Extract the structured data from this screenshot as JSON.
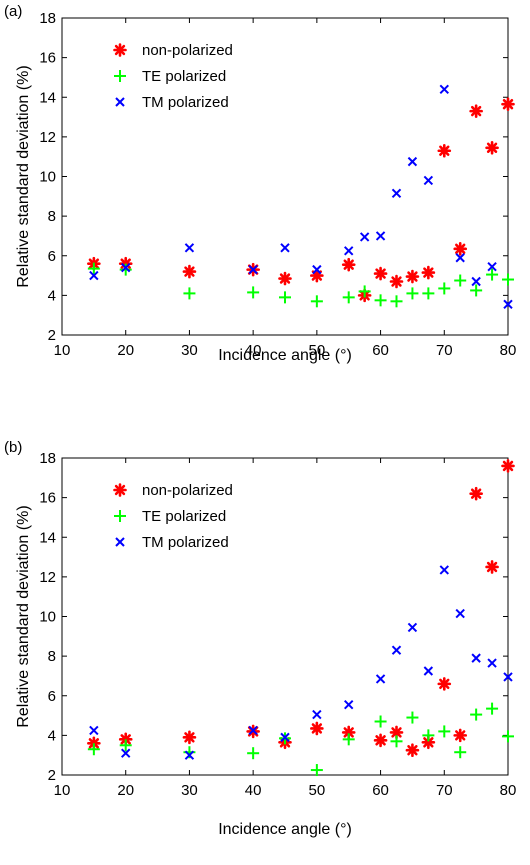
{
  "chart_data": [
    {
      "type": "scatter",
      "panel_label": "(a)",
      "xlabel": "Incidence angle (°)",
      "ylabel": "Relative standard deviation (%)",
      "xlim": [
        10,
        80
      ],
      "ylim": [
        2,
        18
      ],
      "xticks": [
        10,
        20,
        30,
        40,
        50,
        60,
        70,
        80
      ],
      "yticks": [
        2,
        4,
        6,
        8,
        10,
        12,
        14,
        16,
        18
      ],
      "grid": false,
      "legend_position": "top-left",
      "series": [
        {
          "name": "non-polarized",
          "color": "#ff0000",
          "marker": "asterisk",
          "x": [
            15,
            20,
            30,
            40,
            45,
            50,
            55,
            57.5,
            60,
            62.5,
            65,
            67.5,
            70,
            72.5,
            75,
            77.5,
            80
          ],
          "y": [
            5.6,
            5.6,
            5.2,
            5.3,
            4.85,
            5.0,
            5.55,
            4.0,
            5.1,
            4.7,
            4.95,
            5.15,
            11.3,
            6.35,
            13.3,
            11.45,
            13.65
          ]
        },
        {
          "name": "TE polarized",
          "color": "#00ff00",
          "marker": "plus",
          "x": [
            15,
            20,
            30,
            40,
            45,
            50,
            55,
            57.5,
            60,
            62.5,
            65,
            67.5,
            70,
            72.5,
            75,
            77.5,
            80
          ],
          "y": [
            5.35,
            5.3,
            4.1,
            4.15,
            3.9,
            3.7,
            3.9,
            4.2,
            3.75,
            3.7,
            4.1,
            4.1,
            4.35,
            4.75,
            4.25,
            5.05,
            4.8
          ]
        },
        {
          "name": "TM polarized",
          "color": "#0000ff",
          "marker": "x",
          "x": [
            15,
            20,
            30,
            40,
            45,
            50,
            55,
            57.5,
            60,
            62.5,
            65,
            67.5,
            70,
            72.5,
            75,
            77.5,
            80
          ],
          "y": [
            5.0,
            5.4,
            6.4,
            5.3,
            6.4,
            5.3,
            6.25,
            6.95,
            7.0,
            9.15,
            10.75,
            9.8,
            14.4,
            5.9,
            4.7,
            5.45,
            3.55
          ]
        }
      ]
    },
    {
      "type": "scatter",
      "panel_label": "(b)",
      "xlabel": "Incidence angle (°)",
      "ylabel": "Relative standard deviation (%)",
      "xlim": [
        10,
        80
      ],
      "ylim": [
        2,
        18
      ],
      "xticks": [
        10,
        20,
        30,
        40,
        50,
        60,
        70,
        80
      ],
      "yticks": [
        2,
        4,
        6,
        8,
        10,
        12,
        14,
        16,
        18
      ],
      "grid": false,
      "legend_position": "top-left",
      "series": [
        {
          "name": "non-polarized",
          "color": "#ff0000",
          "marker": "asterisk",
          "x": [
            15,
            20,
            30,
            40,
            45,
            50,
            55,
            60,
            62.5,
            65,
            67.5,
            70,
            72.5,
            75,
            77.5,
            80
          ],
          "y": [
            3.6,
            3.8,
            3.9,
            4.2,
            3.65,
            4.35,
            4.15,
            3.75,
            4.15,
            3.25,
            3.65,
            6.6,
            4.0,
            16.2,
            12.5,
            17.6
          ]
        },
        {
          "name": "TE polarized",
          "color": "#00ff00",
          "marker": "plus",
          "x": [
            15,
            20,
            30,
            40,
            45,
            50,
            55,
            60,
            62.5,
            65,
            67.5,
            70,
            72.5,
            75,
            77.5,
            80
          ],
          "y": [
            3.3,
            3.5,
            3.15,
            3.1,
            3.85,
            2.25,
            3.8,
            4.7,
            3.7,
            4.9,
            4.0,
            4.2,
            3.15,
            5.05,
            5.35,
            3.95
          ]
        },
        {
          "name": "TM polarized",
          "color": "#0000ff",
          "marker": "x",
          "x": [
            15,
            20,
            30,
            40,
            45,
            50,
            55,
            60,
            62.5,
            65,
            67.5,
            70,
            72.5,
            75,
            77.5,
            80
          ],
          "y": [
            4.25,
            3.1,
            3.0,
            4.25,
            3.9,
            5.05,
            5.55,
            6.85,
            8.3,
            9.45,
            7.25,
            12.35,
            10.15,
            7.9,
            7.65,
            6.95
          ]
        }
      ]
    }
  ]
}
